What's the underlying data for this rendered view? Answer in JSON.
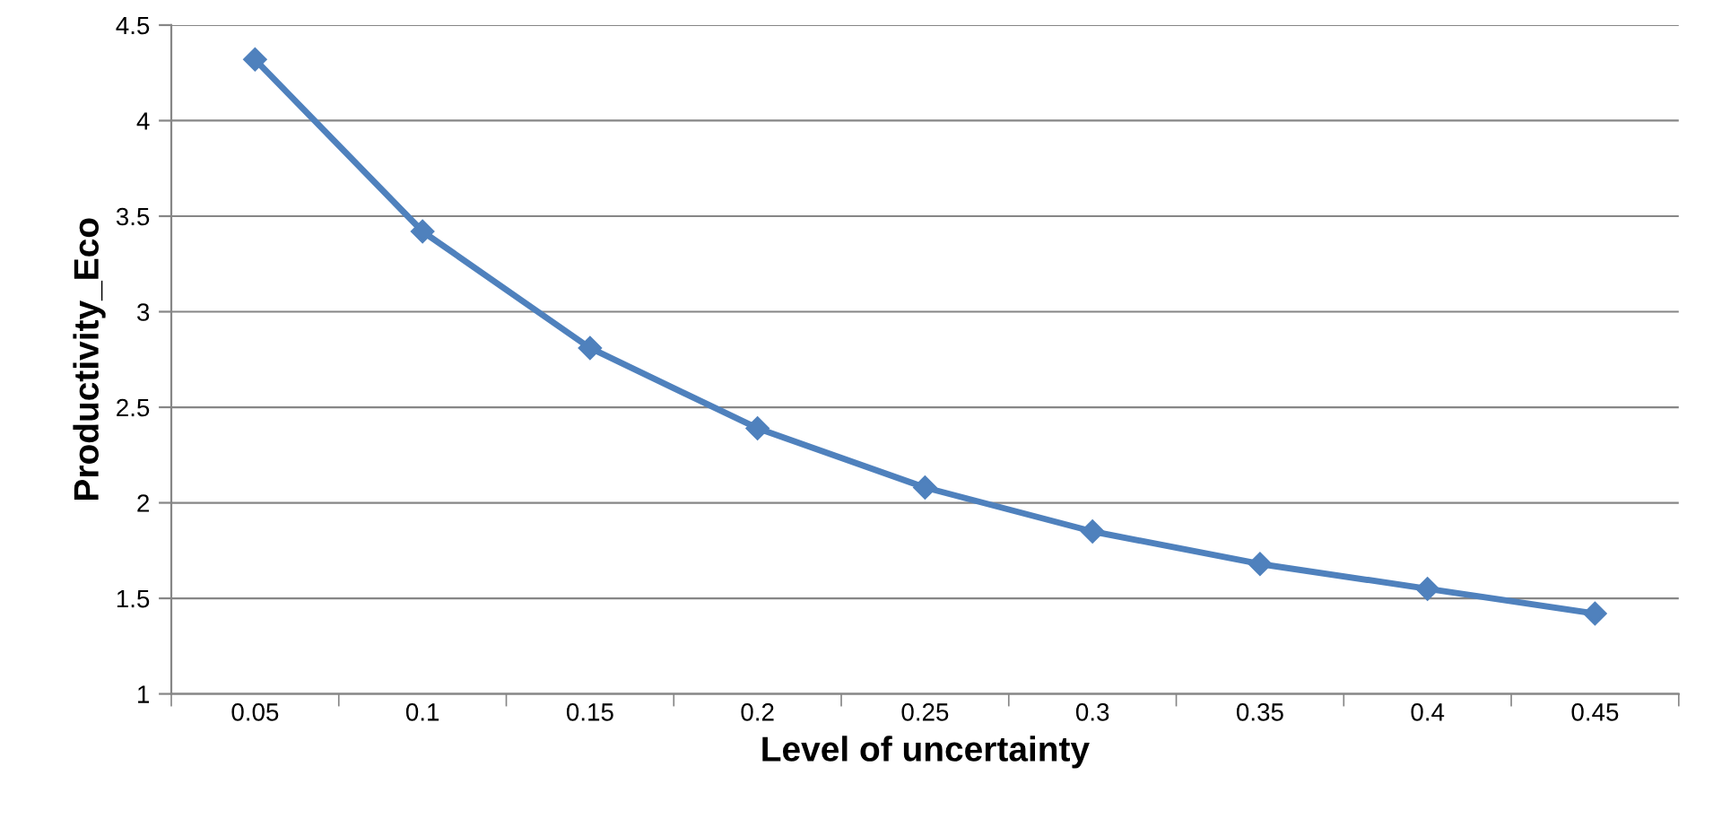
{
  "chart_data": {
    "type": "line",
    "xlabel": "Level of uncertainty",
    "ylabel": "Productivity_Eco",
    "categories": [
      "0.05",
      "0.1",
      "0.15",
      "0.2",
      "0.25",
      "0.3",
      "0.35",
      "0.4",
      "0.45"
    ],
    "series": [
      {
        "color": "#4f81bd",
        "values": [
          4.32,
          3.42,
          2.81,
          2.39,
          2.08,
          1.85,
          1.68,
          1.55,
          1.42
        ]
      }
    ],
    "ylim": [
      1,
      4.5
    ],
    "yticks": [
      1,
      1.5,
      2,
      2.5,
      3,
      3.5,
      4,
      4.5
    ],
    "grid": "y",
    "marker": "diamond",
    "line_style": "solid",
    "legend": false
  }
}
